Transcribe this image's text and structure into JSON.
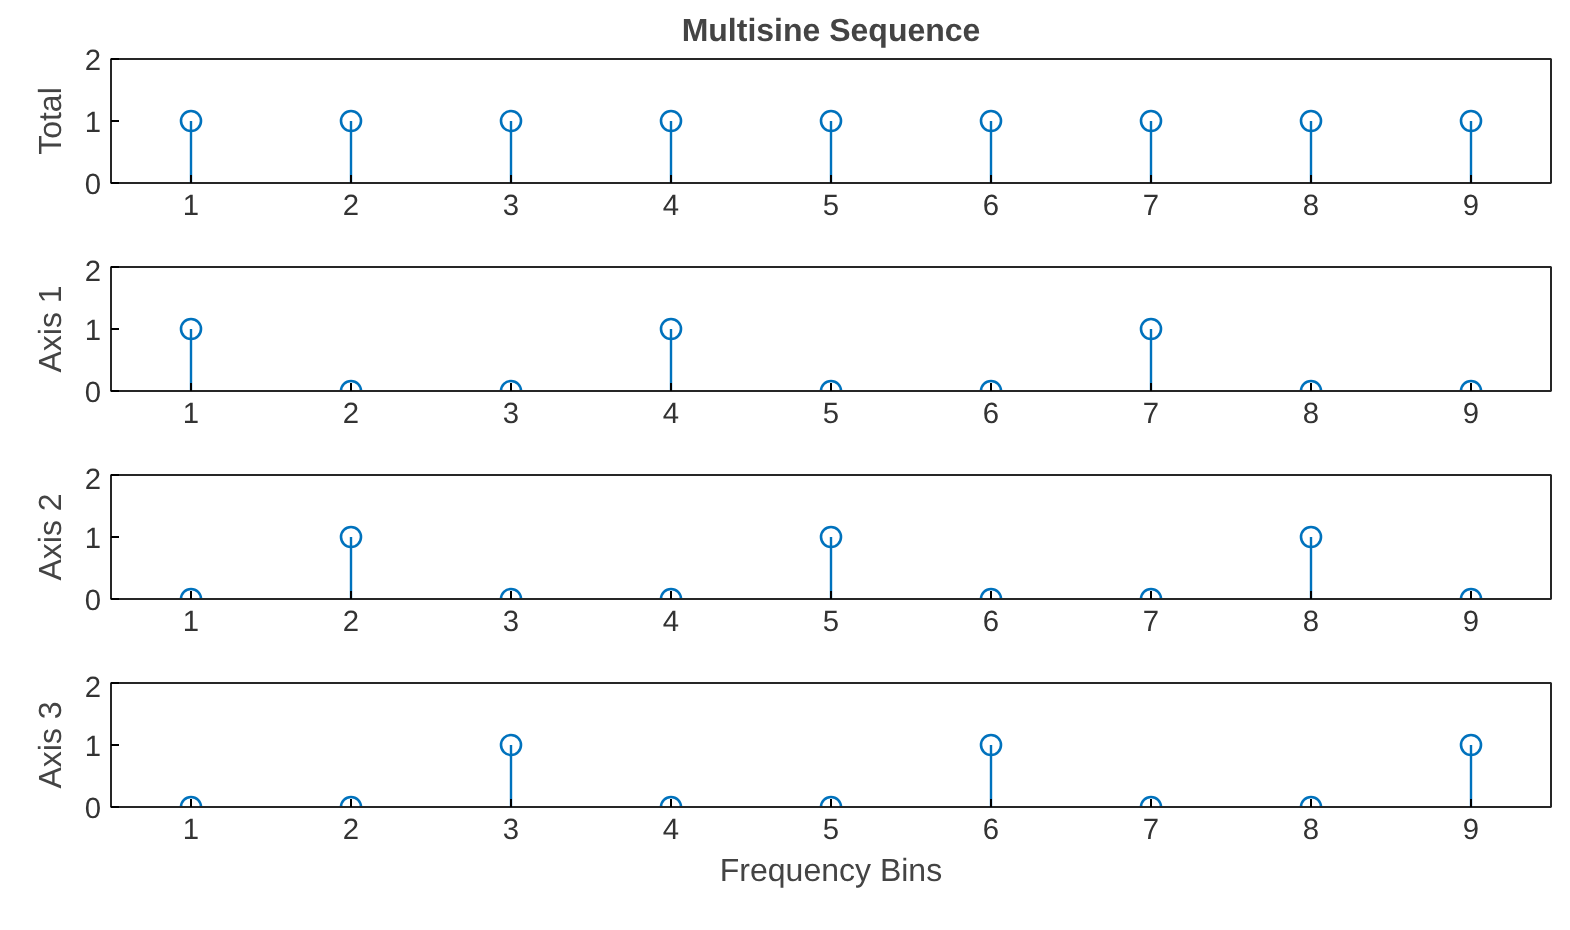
{
  "chart_data": [
    {
      "type": "lollipop",
      "title": "Multisine Sequence",
      "ylabel": "Total",
      "x": [
        1,
        2,
        3,
        4,
        5,
        6,
        7,
        8,
        9
      ],
      "values": [
        1,
        1,
        1,
        1,
        1,
        1,
        1,
        1,
        1
      ],
      "color": "#0072bd",
      "marker": "circle",
      "xlim": [
        0.5,
        9.5
      ],
      "xticks": [
        1,
        2,
        3,
        4,
        5,
        6,
        7,
        8,
        9
      ],
      "ylim": [
        0,
        2
      ],
      "yticks": [
        0,
        1,
        2
      ]
    },
    {
      "type": "lollipop",
      "ylabel": "Axis 1",
      "x": [
        1,
        2,
        3,
        4,
        5,
        6,
        7,
        8,
        9
      ],
      "values": [
        1,
        0,
        0,
        1,
        0,
        0,
        1,
        0,
        0
      ],
      "color": "#0072bd",
      "marker": "circle",
      "xlim": [
        0.5,
        9.5
      ],
      "xticks": [
        1,
        2,
        3,
        4,
        5,
        6,
        7,
        8,
        9
      ],
      "ylim": [
        0,
        2
      ],
      "yticks": [
        0,
        1,
        2
      ]
    },
    {
      "type": "lollipop",
      "ylabel": "Axis 2",
      "x": [
        1,
        2,
        3,
        4,
        5,
        6,
        7,
        8,
        9
      ],
      "values": [
        0,
        1,
        0,
        0,
        1,
        0,
        0,
        1,
        0
      ],
      "color": "#0072bd",
      "marker": "circle",
      "xlim": [
        0.5,
        9.5
      ],
      "xticks": [
        1,
        2,
        3,
        4,
        5,
        6,
        7,
        8,
        9
      ],
      "ylim": [
        0,
        2
      ],
      "yticks": [
        0,
        1,
        2
      ]
    },
    {
      "type": "lollipop",
      "ylabel": "Axis 3",
      "xlabel": "Frequency Bins",
      "x": [
        1,
        2,
        3,
        4,
        5,
        6,
        7,
        8,
        9
      ],
      "values": [
        0,
        0,
        1,
        0,
        0,
        1,
        0,
        0,
        1
      ],
      "color": "#0072bd",
      "marker": "circle",
      "xlim": [
        0.5,
        9.5
      ],
      "xticks": [
        1,
        2,
        3,
        4,
        5,
        6,
        7,
        8,
        9
      ],
      "ylim": [
        0,
        2
      ],
      "yticks": [
        0,
        1,
        2
      ]
    }
  ]
}
